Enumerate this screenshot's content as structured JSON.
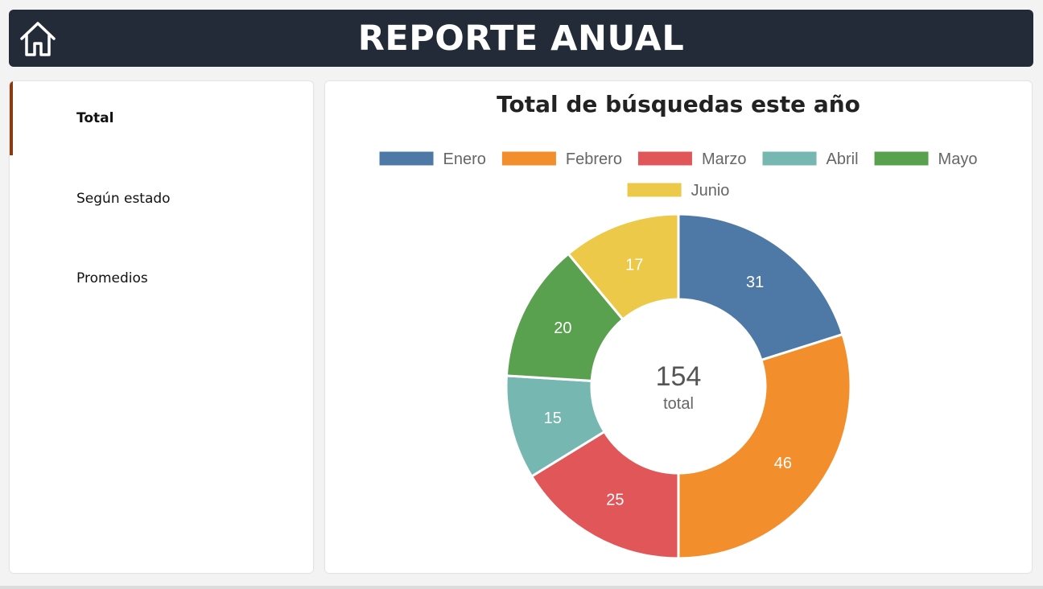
{
  "header": {
    "title": "REPORTE ANUAL",
    "home_icon": "home-icon"
  },
  "sidebar": {
    "items": [
      {
        "label": "Total",
        "active": true
      },
      {
        "label": "Según estado",
        "active": false
      },
      {
        "label": "Promedios",
        "active": false
      }
    ]
  },
  "colors": {
    "header_bg": "#222b37",
    "active_indicator": "#8a3a10"
  },
  "chart_data": {
    "type": "pie",
    "title": "Total de búsquedas este año",
    "categories": [
      "Enero",
      "Febrero",
      "Marzo",
      "Abril",
      "Mayo",
      "Junio"
    ],
    "values": [
      31,
      46,
      25,
      15,
      20,
      17
    ],
    "colors": [
      "#4e79a7",
      "#f28e2c",
      "#e15759",
      "#76b7b2",
      "#59a14f",
      "#edc949"
    ],
    "center_value": "154",
    "center_label": "total",
    "legend_position": "top"
  }
}
